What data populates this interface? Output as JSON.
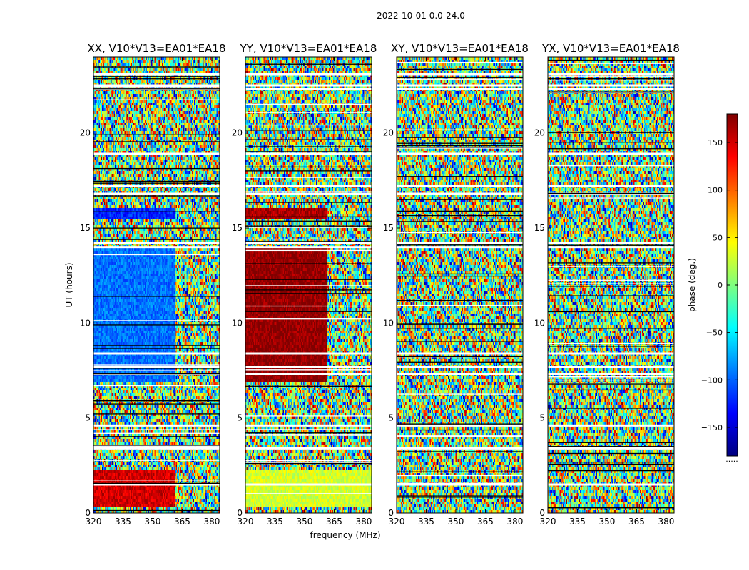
{
  "chart_data": {
    "type": "heatmap",
    "suptitle": "2022-10-01 0.0-24.0",
    "xlabel": "frequency (MHz)",
    "ylabel": "UT (hours)",
    "xlim": [
      320,
      384
    ],
    "ylim": [
      0,
      24
    ],
    "xticks": [
      320,
      335,
      350,
      365,
      380
    ],
    "yticks": [
      0,
      5,
      10,
      15,
      20
    ],
    "colorbar": {
      "label": "phase (deg.)",
      "range": [
        -180,
        180
      ],
      "ticks": [
        -150,
        -100,
        -50,
        0,
        50,
        100,
        150
      ],
      "tick_labels": [
        "−150",
        "−100",
        "−50",
        "0",
        "50",
        "100",
        "150"
      ],
      "colormap": [
        "#00007f",
        "#0000ff",
        "#007fff",
        "#00ffff",
        "#7fff7f",
        "#ffff00",
        "#ff7f00",
        "#ff0000",
        "#7f0000"
      ],
      "ellipsis": "....."
    },
    "panels": [
      {
        "title": "XX, V10*V13=EA01*EA18",
        "coherent_regions": [
          {
            "t_start": 6.9,
            "t_end": 14.0,
            "f_start": 320,
            "f_end": 361,
            "phase": -95
          },
          {
            "t_start": 15.5,
            "t_end": 16.1,
            "f_start": 320,
            "f_end": 361,
            "phase": -120
          },
          {
            "t_start": 0.3,
            "t_end": 2.2,
            "f_start": 320,
            "f_end": 361,
            "phase": 150
          }
        ]
      },
      {
        "title": "YY, V10*V13=EA01*EA18",
        "coherent_regions": [
          {
            "t_start": 6.9,
            "t_end": 14.0,
            "f_start": 320,
            "f_end": 361,
            "phase": 175
          },
          {
            "t_start": 15.5,
            "t_end": 16.1,
            "f_start": 320,
            "f_end": 361,
            "phase": 165
          },
          {
            "t_start": 0.3,
            "t_end": 2.2,
            "f_start": 320,
            "f_end": 384,
            "phase": 30
          }
        ]
      },
      {
        "title": "XY, V10*V13=EA01*EA18",
        "coherent_regions": []
      },
      {
        "title": "YX, V10*V13=EA01*EA18",
        "coherent_regions": []
      }
    ],
    "flagged_hours": [
      1.5,
      3.4,
      4.6,
      7.3,
      7.7,
      8.4,
      14.0,
      14.2,
      16.8,
      17.2,
      18.9,
      22.3,
      22.5,
      23.1
    ]
  }
}
